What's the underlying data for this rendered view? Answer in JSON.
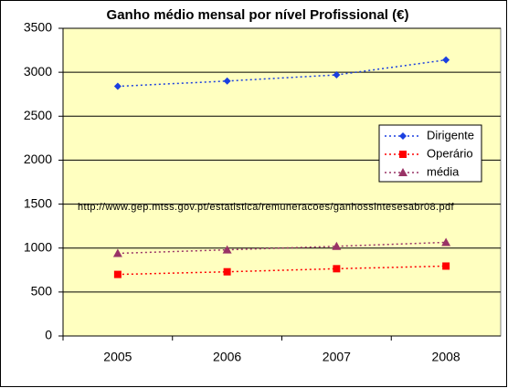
{
  "chart_data": {
    "type": "line",
    "title": "Ganho médio mensal por nível Profissional (€)",
    "annotation": "http://www.gep.mtss.gov.pt/estatistica/remuneracoes/ganhossintesesabr08.pdf",
    "categories": [
      "2005",
      "2006",
      "2007",
      "2008"
    ],
    "series": [
      {
        "name": "Dirigente",
        "color": "#1a3fe0",
        "marker": "diamond",
        "values": [
          2840,
          2900,
          2970,
          3140
        ]
      },
      {
        "name": "Operário",
        "color": "#ff0000",
        "marker": "square",
        "values": [
          700,
          730,
          765,
          795
        ]
      },
      {
        "name": "média",
        "color": "#993366",
        "marker": "triangle",
        "values": [
          940,
          980,
          1020,
          1065
        ]
      }
    ],
    "ylim": [
      0,
      3500
    ],
    "yticks": [
      0,
      500,
      1000,
      1500,
      2000,
      2500,
      3000,
      3500
    ],
    "grid": true,
    "plot_background": "#ffffc0"
  }
}
